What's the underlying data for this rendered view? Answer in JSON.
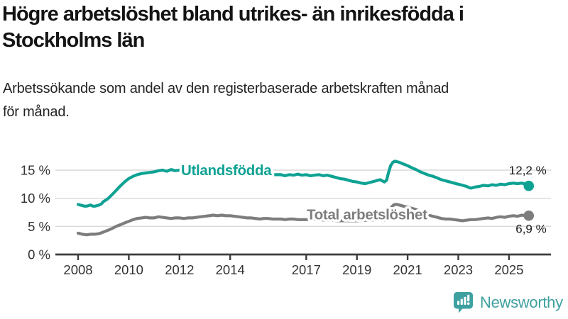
{
  "header": {
    "title_lines": [
      "Högre arbetslöshet bland utrikes- än inrikesfödda i",
      "Stockholms län"
    ],
    "subtitle_lines": [
      "Arbetssökande som andel av den registerbaserade arbetskraften månad",
      "för månad."
    ]
  },
  "chart_data": {
    "type": "line",
    "title": "Högre arbetslöshet bland utrikes- än inrikesfödda i Stockholms län",
    "subtitle": "Arbetssökande som andel av den registerbaserade arbetskraften månad för månad.",
    "unit": "%",
    "grid": "horizontal",
    "legend_position": "inline-on-line",
    "xlim": [
      2008,
      2025.8
    ],
    "ylim": [
      0,
      17.5
    ],
    "x_ticks": [
      {
        "value": 2008,
        "label": "2008"
      },
      {
        "value": 2010,
        "label": "2010"
      },
      {
        "value": 2012,
        "label": "2012"
      },
      {
        "value": 2014,
        "label": "2014"
      },
      {
        "value": 2017,
        "label": "2017"
      },
      {
        "value": 2019,
        "label": "2019"
      },
      {
        "value": 2021,
        "label": "2021"
      },
      {
        "value": 2023,
        "label": "2023"
      },
      {
        "value": 2025,
        "label": "2025"
      }
    ],
    "y_ticks": [
      {
        "value": 0,
        "label": "0 %"
      },
      {
        "value": 5,
        "label": "5 %"
      },
      {
        "value": 10,
        "label": "10 %"
      },
      {
        "value": 15,
        "label": "15 %"
      }
    ],
    "series": [
      {
        "name": "Utlandsfödda",
        "color": "#0ea293",
        "end_label": "12,2 %",
        "end_value": 12.2,
        "label_anchor": {
          "x": 2012.06,
          "y": 14.1
        },
        "points": [
          [
            2008.0,
            8.9
          ],
          [
            2008.08,
            8.8
          ],
          [
            2008.17,
            8.7
          ],
          [
            2008.25,
            8.6
          ],
          [
            2008.33,
            8.6
          ],
          [
            2008.42,
            8.7
          ],
          [
            2008.5,
            8.8
          ],
          [
            2008.58,
            8.6
          ],
          [
            2008.67,
            8.6
          ],
          [
            2008.75,
            8.7
          ],
          [
            2008.83,
            8.8
          ],
          [
            2008.92,
            9.0
          ],
          [
            2009.0,
            9.4
          ],
          [
            2009.17,
            9.9
          ],
          [
            2009.33,
            10.6
          ],
          [
            2009.5,
            11.4
          ],
          [
            2009.67,
            12.2
          ],
          [
            2009.83,
            12.9
          ],
          [
            2010.0,
            13.5
          ],
          [
            2010.17,
            13.9
          ],
          [
            2010.33,
            14.2
          ],
          [
            2010.5,
            14.4
          ],
          [
            2010.67,
            14.5
          ],
          [
            2010.83,
            14.6
          ],
          [
            2011.0,
            14.7
          ],
          [
            2011.17,
            14.9
          ],
          [
            2011.33,
            15.0
          ],
          [
            2011.5,
            14.8
          ],
          [
            2011.67,
            15.1
          ],
          [
            2011.83,
            14.9
          ],
          [
            2012.0,
            15.0
          ],
          [
            2012.17,
            15.1
          ],
          [
            2012.33,
            15.0
          ],
          [
            2012.5,
            15.0
          ],
          [
            2012.75,
            15.1
          ],
          [
            2013.0,
            15.1
          ],
          [
            2013.25,
            15.0
          ],
          [
            2013.5,
            15.1
          ],
          [
            2013.75,
            14.9
          ],
          [
            2014.0,
            14.8
          ],
          [
            2014.25,
            14.7
          ],
          [
            2014.5,
            14.6
          ],
          [
            2014.75,
            14.5
          ],
          [
            2015.0,
            14.4
          ],
          [
            2015.25,
            14.3
          ],
          [
            2015.5,
            14.3
          ],
          [
            2015.75,
            14.2
          ],
          [
            2016.0,
            14.2
          ],
          [
            2016.17,
            14.0
          ],
          [
            2016.33,
            14.2
          ],
          [
            2016.5,
            14.1
          ],
          [
            2016.67,
            14.3
          ],
          [
            2016.83,
            14.1
          ],
          [
            2017.0,
            14.2
          ],
          [
            2017.17,
            14.0
          ],
          [
            2017.33,
            14.1
          ],
          [
            2017.5,
            14.2
          ],
          [
            2017.67,
            14.0
          ],
          [
            2017.83,
            14.1
          ],
          [
            2018.0,
            13.9
          ],
          [
            2018.17,
            13.7
          ],
          [
            2018.33,
            13.5
          ],
          [
            2018.5,
            13.4
          ],
          [
            2018.67,
            13.2
          ],
          [
            2018.83,
            13.0
          ],
          [
            2019.0,
            12.9
          ],
          [
            2019.17,
            12.7
          ],
          [
            2019.33,
            12.6
          ],
          [
            2019.5,
            12.8
          ],
          [
            2019.67,
            13.0
          ],
          [
            2019.83,
            13.2
          ],
          [
            2019.92,
            13.3
          ],
          [
            2020.08,
            12.9
          ],
          [
            2020.17,
            13.2
          ],
          [
            2020.25,
            14.6
          ],
          [
            2020.33,
            15.8
          ],
          [
            2020.42,
            16.4
          ],
          [
            2020.5,
            16.6
          ],
          [
            2020.58,
            16.5
          ],
          [
            2020.67,
            16.4
          ],
          [
            2020.83,
            16.1
          ],
          [
            2021.0,
            15.8
          ],
          [
            2021.17,
            15.4
          ],
          [
            2021.33,
            15.1
          ],
          [
            2021.5,
            14.7
          ],
          [
            2021.67,
            14.4
          ],
          [
            2021.83,
            14.1
          ],
          [
            2022.0,
            13.9
          ],
          [
            2022.17,
            13.6
          ],
          [
            2022.33,
            13.3
          ],
          [
            2022.5,
            13.1
          ],
          [
            2022.67,
            12.9
          ],
          [
            2022.83,
            12.7
          ],
          [
            2023.0,
            12.5
          ],
          [
            2023.17,
            12.3
          ],
          [
            2023.33,
            12.1
          ],
          [
            2023.42,
            11.9
          ],
          [
            2023.5,
            11.8
          ],
          [
            2023.67,
            12.0
          ],
          [
            2023.83,
            12.1
          ],
          [
            2024.0,
            12.3
          ],
          [
            2024.17,
            12.2
          ],
          [
            2024.33,
            12.4
          ],
          [
            2024.5,
            12.3
          ],
          [
            2024.67,
            12.5
          ],
          [
            2024.83,
            12.4
          ],
          [
            2025.0,
            12.6
          ],
          [
            2025.17,
            12.7
          ],
          [
            2025.33,
            12.6
          ],
          [
            2025.5,
            12.7
          ],
          [
            2025.67,
            12.5
          ],
          [
            2025.78,
            12.2
          ]
        ]
      },
      {
        "name": "Total arbetslöshet",
        "color": "#7d7d7d",
        "end_label": "6,9 %",
        "end_value": 6.9,
        "label_anchor": {
          "x": 2017.02,
          "y": 6.25
        },
        "points": [
          [
            2008.0,
            3.8
          ],
          [
            2008.17,
            3.6
          ],
          [
            2008.33,
            3.5
          ],
          [
            2008.5,
            3.6
          ],
          [
            2008.67,
            3.6
          ],
          [
            2008.83,
            3.7
          ],
          [
            2009.0,
            4.0
          ],
          [
            2009.17,
            4.3
          ],
          [
            2009.33,
            4.6
          ],
          [
            2009.5,
            5.0
          ],
          [
            2009.67,
            5.3
          ],
          [
            2009.83,
            5.6
          ],
          [
            2010.0,
            5.9
          ],
          [
            2010.17,
            6.2
          ],
          [
            2010.33,
            6.4
          ],
          [
            2010.5,
            6.5
          ],
          [
            2010.67,
            6.6
          ],
          [
            2010.83,
            6.5
          ],
          [
            2011.0,
            6.5
          ],
          [
            2011.17,
            6.7
          ],
          [
            2011.33,
            6.6
          ],
          [
            2011.5,
            6.5
          ],
          [
            2011.67,
            6.4
          ],
          [
            2011.83,
            6.5
          ],
          [
            2012.0,
            6.5
          ],
          [
            2012.17,
            6.4
          ],
          [
            2012.33,
            6.5
          ],
          [
            2012.5,
            6.5
          ],
          [
            2012.67,
            6.6
          ],
          [
            2012.83,
            6.7
          ],
          [
            2013.0,
            6.8
          ],
          [
            2013.17,
            6.9
          ],
          [
            2013.33,
            7.0
          ],
          [
            2013.5,
            6.9
          ],
          [
            2013.67,
            7.0
          ],
          [
            2013.83,
            6.9
          ],
          [
            2014.0,
            6.9
          ],
          [
            2014.17,
            6.8
          ],
          [
            2014.33,
            6.7
          ],
          [
            2014.5,
            6.6
          ],
          [
            2014.67,
            6.5
          ],
          [
            2014.83,
            6.5
          ],
          [
            2015.0,
            6.4
          ],
          [
            2015.17,
            6.3
          ],
          [
            2015.33,
            6.4
          ],
          [
            2015.5,
            6.4
          ],
          [
            2015.67,
            6.3
          ],
          [
            2015.83,
            6.3
          ],
          [
            2016.0,
            6.3
          ],
          [
            2016.17,
            6.2
          ],
          [
            2016.33,
            6.3
          ],
          [
            2016.5,
            6.3
          ],
          [
            2016.67,
            6.2
          ],
          [
            2016.83,
            6.2
          ],
          [
            2017.0,
            6.2
          ],
          [
            2017.25,
            6.2
          ],
          [
            2017.5,
            6.2
          ],
          [
            2017.75,
            6.1
          ],
          [
            2018.0,
            6.1
          ],
          [
            2018.25,
            6.0
          ],
          [
            2018.5,
            6.0
          ],
          [
            2018.75,
            6.0
          ],
          [
            2019.0,
            6.0
          ],
          [
            2019.25,
            6.1
          ],
          [
            2019.5,
            6.1
          ],
          [
            2019.75,
            6.2
          ],
          [
            2019.92,
            6.2
          ],
          [
            2020.08,
            6.1
          ],
          [
            2020.25,
            7.3
          ],
          [
            2020.33,
            8.2
          ],
          [
            2020.42,
            8.7
          ],
          [
            2020.5,
            8.9
          ],
          [
            2020.58,
            8.9
          ],
          [
            2020.67,
            8.8
          ],
          [
            2020.83,
            8.6
          ],
          [
            2021.0,
            8.4
          ],
          [
            2021.17,
            8.2
          ],
          [
            2021.33,
            8.0
          ],
          [
            2021.5,
            7.6
          ],
          [
            2021.67,
            7.3
          ],
          [
            2021.83,
            7.0
          ],
          [
            2022.0,
            6.8
          ],
          [
            2022.17,
            6.6
          ],
          [
            2022.33,
            6.4
          ],
          [
            2022.5,
            6.3
          ],
          [
            2022.67,
            6.3
          ],
          [
            2022.83,
            6.2
          ],
          [
            2023.0,
            6.1
          ],
          [
            2023.17,
            6.0
          ],
          [
            2023.33,
            6.1
          ],
          [
            2023.5,
            6.2
          ],
          [
            2023.67,
            6.2
          ],
          [
            2023.83,
            6.3
          ],
          [
            2024.0,
            6.4
          ],
          [
            2024.17,
            6.5
          ],
          [
            2024.33,
            6.4
          ],
          [
            2024.5,
            6.6
          ],
          [
            2024.67,
            6.7
          ],
          [
            2024.83,
            6.6
          ],
          [
            2025.0,
            6.8
          ],
          [
            2025.17,
            6.9
          ],
          [
            2025.33,
            6.8
          ],
          [
            2025.5,
            7.0
          ],
          [
            2025.67,
            6.9
          ],
          [
            2025.78,
            6.9
          ]
        ]
      }
    ]
  },
  "branding": {
    "logo_text": "Newsworthy",
    "logo_color": "#3fa0a0"
  },
  "colors": {
    "accent_teal": "#0ea293",
    "series_gray": "#7d7d7d",
    "grid": "#d9d9d9",
    "axis": "#3d3d3d",
    "text": "#333333"
  }
}
